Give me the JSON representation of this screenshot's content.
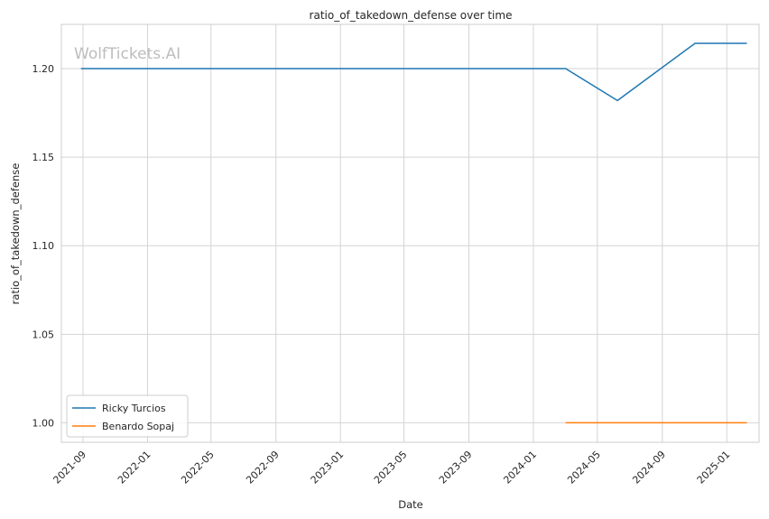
{
  "chart_data": {
    "type": "line",
    "title": "ratio_of_takedown_defense over time",
    "xlabel": "Date",
    "ylabel": "ratio_of_takedown_defense",
    "watermark": "WolfTickets.AI",
    "xlim": [
      "2021-07-22",
      "2025-03-03"
    ],
    "ylim": [
      0.989,
      1.225
    ],
    "x_ticks": [
      "2021-09",
      "2022-01",
      "2022-05",
      "2022-09",
      "2023-01",
      "2023-05",
      "2023-09",
      "2024-01",
      "2024-05",
      "2024-09",
      "2025-01"
    ],
    "y_ticks": [
      "1.00",
      "1.05",
      "1.10",
      "1.15",
      "1.20"
    ],
    "grid": true,
    "legend_position": "lower-left",
    "series": [
      {
        "name": "Ricky Turcios",
        "color": "#1f77b4",
        "points": [
          {
            "x": "2021-08-28",
            "y": 1.2
          },
          {
            "x": "2024-03-02",
            "y": 1.2
          },
          {
            "x": "2024-06-08",
            "y": 1.182
          },
          {
            "x": "2024-11-02",
            "y": 1.2143
          },
          {
            "x": "2025-02-08",
            "y": 1.2143
          }
        ]
      },
      {
        "name": "Benardo Sopaj",
        "color": "#ff7f0e",
        "points": [
          {
            "x": "2024-03-02",
            "y": 1.0
          },
          {
            "x": "2025-02-08",
            "y": 1.0
          }
        ]
      }
    ]
  }
}
